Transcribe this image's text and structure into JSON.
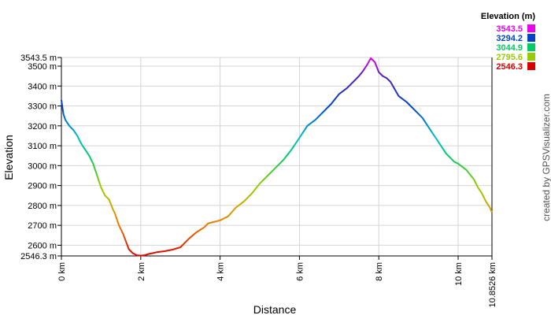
{
  "chart_data": {
    "type": "line",
    "title": "",
    "xlabel": "Distance",
    "ylabel": "Elevation",
    "xlim": [
      0,
      10.8526
    ],
    "ylim": [
      2546.3,
      3543.5
    ],
    "x_unit": "km",
    "y_unit": "m",
    "x_ticks": [
      {
        "value": 0,
        "label": "0 km"
      },
      {
        "value": 2,
        "label": "2 km"
      },
      {
        "value": 4,
        "label": "4 km"
      },
      {
        "value": 6,
        "label": "6 km"
      },
      {
        "value": 8,
        "label": "8 km"
      },
      {
        "value": 10,
        "label": "10 km"
      },
      {
        "value": 10.8526,
        "label": "10.8526 km"
      }
    ],
    "y_ticks": [
      {
        "value": 2546.3,
        "label": "2546.3 m"
      },
      {
        "value": 2600,
        "label": "2600 m"
      },
      {
        "value": 2700,
        "label": "2700 m"
      },
      {
        "value": 2800,
        "label": "2800 m"
      },
      {
        "value": 2900,
        "label": "2900 m"
      },
      {
        "value": 3000,
        "label": "3000 m"
      },
      {
        "value": 3100,
        "label": "3100 m"
      },
      {
        "value": 3200,
        "label": "3200 m"
      },
      {
        "value": 3300,
        "label": "3300 m"
      },
      {
        "value": 3400,
        "label": "3400 m"
      },
      {
        "value": 3500,
        "label": "3500 m"
      },
      {
        "value": 3543.5,
        "label": "3543.5 m"
      }
    ],
    "grid": true,
    "legend": {
      "title": "Elevation (m)",
      "placement": "top-right",
      "entries": [
        {
          "label": "3543.5",
          "color": "#ee00ee"
        },
        {
          "label": "3294.2",
          "color": "#0044cc"
        },
        {
          "label": "3044.9",
          "color": "#00cc66"
        },
        {
          "label": "2795.6",
          "color": "#99cc00"
        },
        {
          "label": "2546.3",
          "color": "#dd0000"
        }
      ]
    },
    "series": [
      {
        "x": [
          0.0,
          0.05,
          0.1,
          0.2,
          0.3,
          0.4,
          0.5,
          0.6,
          0.7,
          0.8,
          0.9,
          1.0,
          1.1,
          1.2,
          1.3,
          1.35,
          1.45,
          1.55,
          1.7,
          1.8,
          1.9,
          2.0,
          2.1,
          2.2,
          2.3,
          2.4,
          2.6,
          2.8,
          3.0,
          3.1,
          3.2,
          3.4,
          3.6,
          3.7,
          3.8,
          4.0,
          4.2,
          4.4,
          4.6,
          4.8,
          5.0,
          5.2,
          5.4,
          5.6,
          5.8,
          6.0,
          6.2,
          6.4,
          6.6,
          6.8,
          7.0,
          7.2,
          7.4,
          7.5,
          7.6,
          7.65,
          7.7,
          7.8,
          7.9,
          8.0,
          8.1,
          8.2,
          8.3,
          8.5,
          8.7,
          8.9,
          9.1,
          9.3,
          9.5,
          9.7,
          9.8,
          9.9,
          10.0,
          10.2,
          10.4,
          10.5,
          10.6,
          10.7,
          10.8,
          10.85
        ],
        "y": [
          3330,
          3260,
          3230,
          3200,
          3180,
          3150,
          3110,
          3080,
          3050,
          3010,
          2950,
          2890,
          2850,
          2830,
          2780,
          2760,
          2700,
          2660,
          2580,
          2560,
          2550,
          2548,
          2550,
          2556,
          2560,
          2565,
          2570,
          2578,
          2590,
          2610,
          2630,
          2665,
          2690,
          2710,
          2715,
          2725,
          2745,
          2790,
          2820,
          2860,
          2910,
          2950,
          2990,
          3030,
          3080,
          3140,
          3200,
          3230,
          3270,
          3310,
          3360,
          3390,
          3430,
          3450,
          3475,
          3490,
          3505,
          3540,
          3520,
          3470,
          3450,
          3440,
          3420,
          3350,
          3320,
          3280,
          3240,
          3180,
          3120,
          3060,
          3040,
          3020,
          3010,
          2980,
          2930,
          2890,
          2860,
          2820,
          2790,
          2765
        ]
      }
    ]
  },
  "credit": "created by GPSVisualizer.com"
}
